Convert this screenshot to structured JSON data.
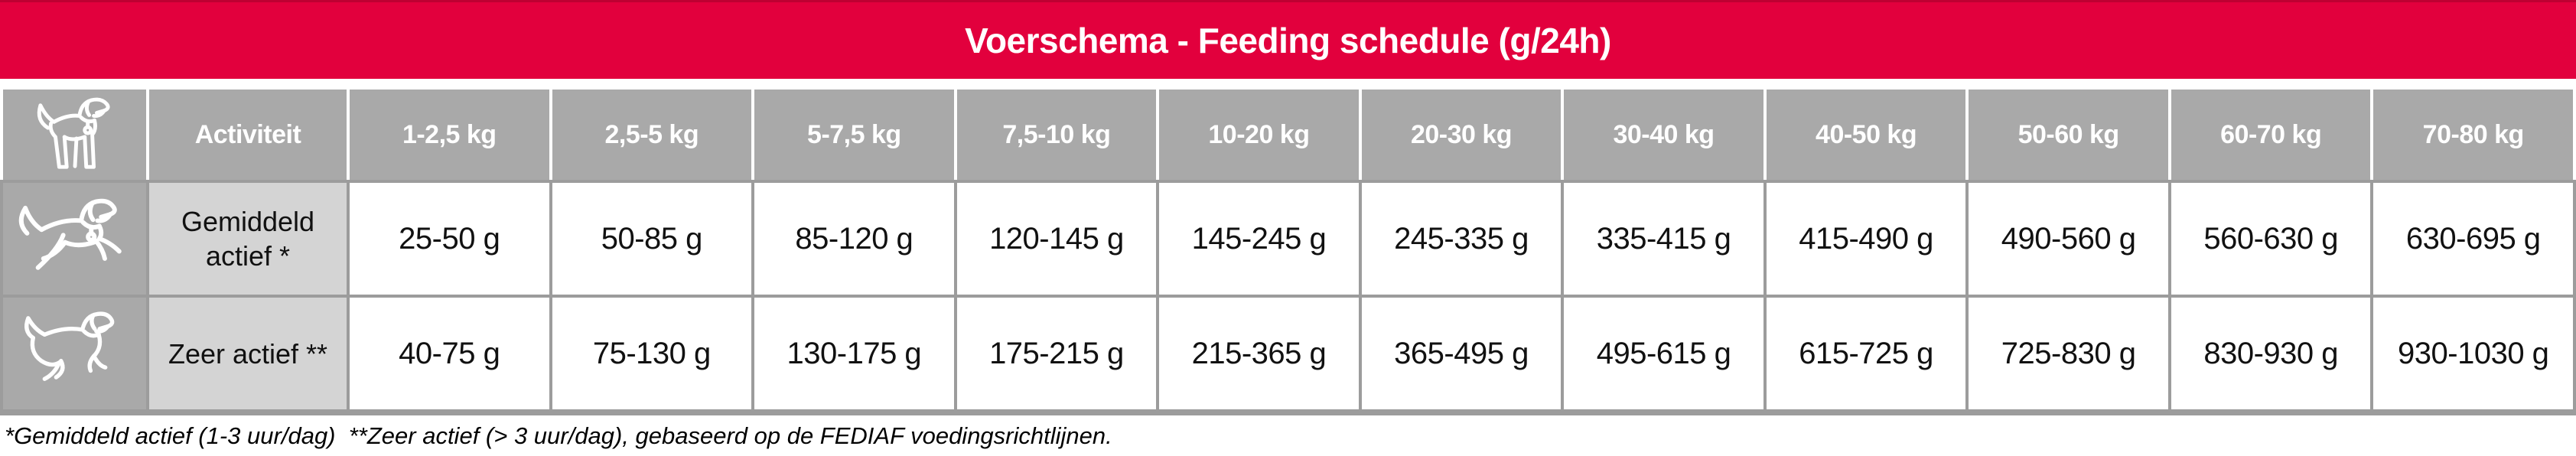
{
  "title": "Voerschema - Feeding schedule (g/24h)",
  "colors": {
    "accent_red": "#E2003D",
    "accent_red_dark": "#BE0032",
    "header_gray": "#A9A9A9",
    "label_gray": "#D4D4D4",
    "grid_gray": "#9C9C9C",
    "icon_stroke": "#FFFFFF"
  },
  "table": {
    "header_icon": "standing-dog-icon",
    "activity_header": "Activiteit",
    "weight_headers": [
      "1-2,5 kg",
      "2,5-5 kg",
      "5-7,5 kg",
      "7,5-10 kg",
      "10-20 kg",
      "20-30 kg",
      "30-40 kg",
      "40-50 kg",
      "50-60 kg",
      "60-70 kg",
      "70-80 kg"
    ],
    "rows": [
      {
        "icon": "running-dog-icon",
        "activity": "Gemiddeld actief *",
        "values": [
          "25-50 g",
          "50-85 g",
          "85-120 g",
          "120-145 g",
          "145-245 g",
          "245-335 g",
          "335-415 g",
          "415-490 g",
          "490-560 g",
          "560-630 g",
          "630-695 g"
        ]
      },
      {
        "icon": "galloping-dog-icon",
        "activity": "Zeer actief **",
        "values": [
          "40-75 g",
          "75-130 g",
          "130-175 g",
          "175-215 g",
          "215-365 g",
          "365-495 g",
          "495-615 g",
          "615-725 g",
          "725-830 g",
          "830-930 g",
          "930-1030 g"
        ]
      }
    ]
  },
  "footnote": "*Gemiddeld actief (1-3 uur/dag)  **Zeer actief (> 3 uur/dag), gebaseerd op de FEDIAF voedingsrichtlijnen."
}
